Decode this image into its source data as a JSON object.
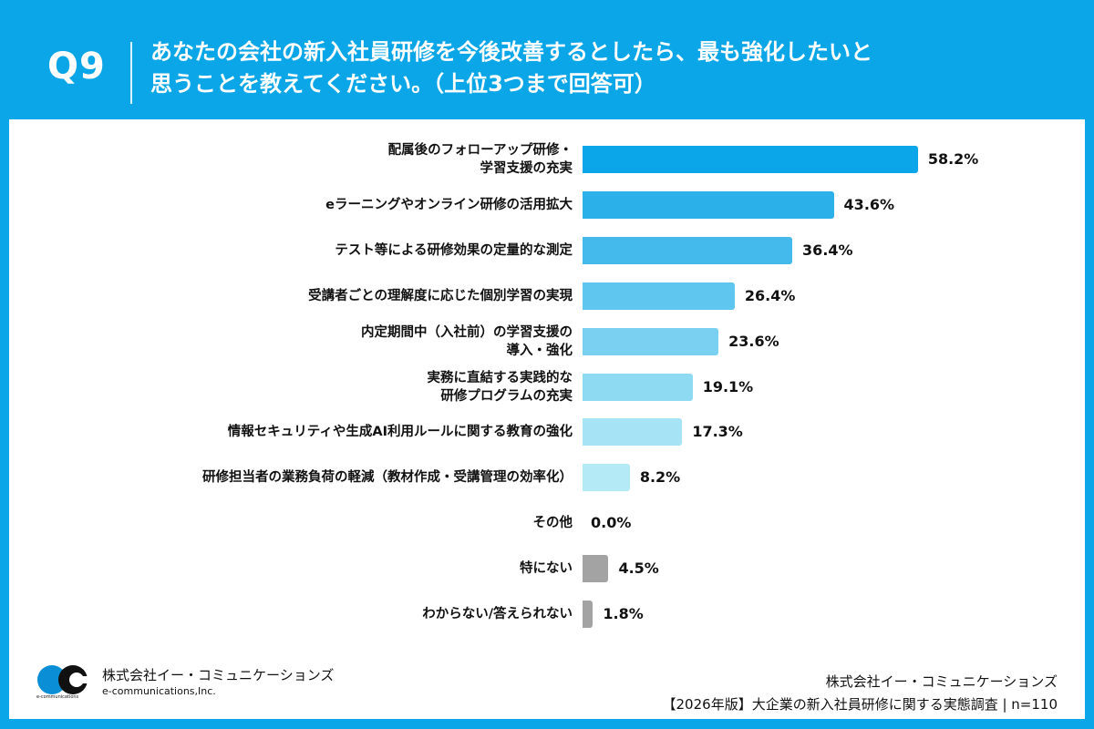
{
  "header": {
    "question_no": "Q9",
    "title": "あなたの会社の新入社員研修を今後改善するとしたら、最も強化したいと\n思うことを教えてください。（上位3つまで回答可）"
  },
  "chart_data": {
    "type": "bar",
    "orientation": "horizontal",
    "categories": [
      "配属後のフォローアップ研修・\n学習支援の充実",
      "eラーニングやオンライン研修の活用拡大",
      "テスト等による研修効果の定量的な測定",
      "受講者ごとの理解度に応じた個別学習の実現",
      "内定期間中（入社前）の学習支援の\n導入・強化",
      "実務に直結する実践的な\n研修プログラムの充実",
      "情報セキュリティや生成AI利用ルールに関する教育の強化",
      "研修担当者の業務負荷の軽減（教材作成・受講管理の効率化）",
      "その他",
      "特にない",
      "わからない/答えられない"
    ],
    "values": [
      58.2,
      43.6,
      36.4,
      26.4,
      23.6,
      19.1,
      17.3,
      8.2,
      0.0,
      4.5,
      1.8
    ],
    "value_labels": [
      "58.2%",
      "43.6%",
      "36.4%",
      "26.4%",
      "23.6%",
      "19.1%",
      "17.3%",
      "8.2%",
      "0.0%",
      "4.5%",
      "1.8%"
    ],
    "colors": [
      "#0aa6e9",
      "#2cb0ea",
      "#44baec",
      "#5ec6ef",
      "#79d0f1",
      "#8fdaf3",
      "#a6e4f5",
      "#b4e9f6",
      "#b4e9f6",
      "#a3a3a3",
      "#a3a3a3"
    ],
    "unit": "%",
    "grid": false
  },
  "footer": {
    "logo_jp": "株式会社イー・コミュニケーションズ",
    "logo_en": "e-communications,Inc.",
    "logo_tiny": "e-communications",
    "company": "株式会社イー・コミュニケーションズ",
    "survey": "【2026年版】大企業の新入社員研修に関する実態調査 | n=110"
  }
}
